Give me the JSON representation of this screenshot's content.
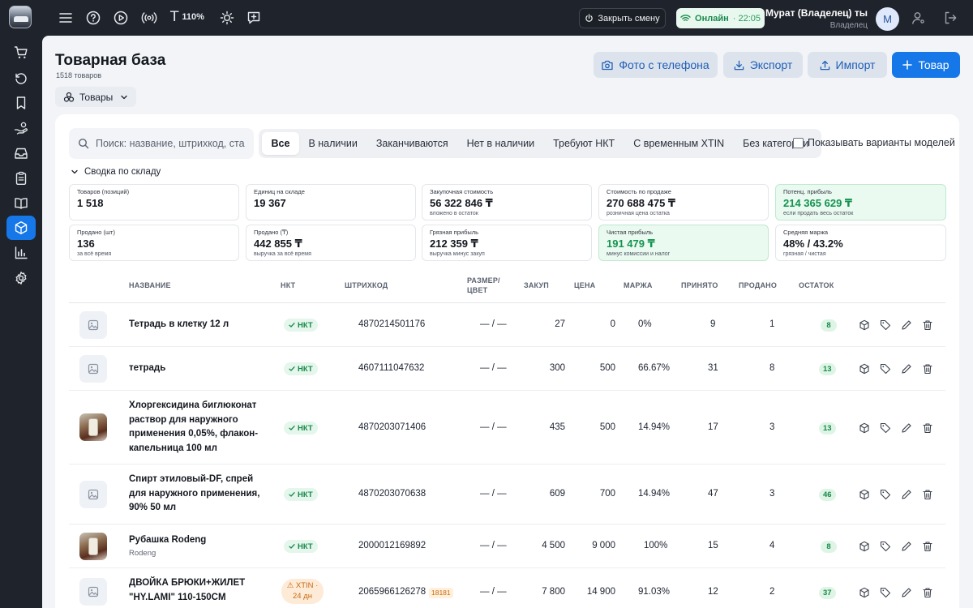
{
  "topbar": {
    "zoom": "110%",
    "close_shift": "Закрыть смену",
    "online_label": "Онлайн",
    "online_time": "· 22:05",
    "user_name": "Мурат (Владелец) ты",
    "user_role": "Владелец",
    "avatar": "M"
  },
  "page": {
    "title": "Товарная база",
    "subtitle": "1518 товаров",
    "category_dropdown": "Товары"
  },
  "header_buttons": {
    "photo": "Фото с телефона",
    "export": "Экспорт",
    "import": "Импорт",
    "add": "Товар"
  },
  "search": {
    "placeholder": "Поиск: название, штрихкод, ста"
  },
  "filters": [
    "Все",
    "В наличии",
    "Заканчиваются",
    "Нет в наличии",
    "Требуют НКТ",
    "С временным XTIN",
    "Без категории"
  ],
  "show_variants": "Показывать варианты моделей",
  "summary": {
    "toggle": "Сводка по складу",
    "stats": [
      {
        "label": "Товаров (позиций)",
        "value": "1 518",
        "sub": ""
      },
      {
        "label": "Единиц на складе",
        "value": "19 367",
        "sub": ""
      },
      {
        "label": "Закупочная стоимость",
        "value": "56 322 846 ₸",
        "sub": "вложено в остаток"
      },
      {
        "label": "Стоимость по продаже",
        "value": "270 688 475 ₸",
        "sub": "розничная цена остатка"
      },
      {
        "label": "Потенц. прибыль",
        "value": "214 365 629 ₸",
        "sub": "если продать весь остаток"
      },
      {
        "label": "Продано (шт)",
        "value": "136",
        "sub": "за всё время"
      },
      {
        "label": "Продано (₸)",
        "value": "442 855 ₸",
        "sub": "выручка за всё время"
      },
      {
        "label": "Грязная прибыль",
        "value": "212 359 ₸",
        "sub": "выручка минус закуп"
      },
      {
        "label": "Чистая прибыль",
        "value": "191 479 ₸",
        "sub": "минус комиссии и налог"
      },
      {
        "label": "Средняя маржа",
        "value": "48% / 43.2%",
        "sub": "грязная / чистая"
      }
    ]
  },
  "table": {
    "headers": {
      "name": "НАЗВАНИЕ",
      "nkt": "НКТ",
      "barcode": "ШТРИХКОД",
      "size_color_1": "РАЗМЕР/",
      "size_color_2": "ЦВЕТ",
      "cost": "ЗАКУП",
      "price": "ЦЕНА",
      "margin": "МАРЖА",
      "received": "ПРИНЯТО",
      "sold": "ПРОДАНО",
      "stock": "ОСТАТОК"
    },
    "rows": [
      {
        "name": "Тетрадь в клетку 12 л",
        "sub": "",
        "badge": "НКТ",
        "barcode": "4870214501176",
        "size": "— / —",
        "cost": "27",
        "price": "0",
        "margin": "0%",
        "received": "9",
        "sold": "1",
        "stock": "8"
      },
      {
        "name": "тетрадь",
        "sub": "",
        "badge": "НКТ",
        "barcode": "4607111047632",
        "size": "— / —",
        "cost": "300",
        "price": "500",
        "margin": "66.67%",
        "received": "31",
        "sold": "8",
        "stock": "13"
      },
      {
        "name": "Хлоргексидина биглюконат раствор для наружного применения 0,05%, флакон-капельница 100 мл",
        "sub": "",
        "badge": "НКТ",
        "barcode": "4870203071406",
        "size": "— / —",
        "cost": "435",
        "price": "500",
        "margin": "14.94%",
        "received": "17",
        "sold": "3",
        "stock": "13"
      },
      {
        "name": "Спирт этиловый-DF, спрей для наружного применения, 90% 50 мл",
        "sub": "",
        "badge": "НКТ",
        "barcode": "4870203070638",
        "size": "— / —",
        "cost": "609",
        "price": "700",
        "margin": "14.94%",
        "received": "47",
        "sold": "3",
        "stock": "46"
      },
      {
        "name": "Рубашка Rodeng",
        "sub": "Rodeng",
        "badge": "НКТ",
        "barcode": "2000012169892",
        "size": "— / —",
        "cost": "4 500",
        "price": "9 000",
        "margin": "100%",
        "received": "15",
        "sold": "4",
        "stock": "8"
      },
      {
        "name": "ДВОЙКА БРЮКИ+ЖИЛЕТ \"HY.LAMI\" 110-150CM",
        "sub": "",
        "badge_xtin_1": "XTIN ·",
        "badge_xtin_2": "24 дн",
        "barcode": "2065966126278",
        "xtin_code": "18181",
        "size": "— / —",
        "cost": "7 800",
        "price": "14 900",
        "margin": "91.03%",
        "received": "12",
        "sold": "2",
        "stock": "37"
      }
    ]
  },
  "colors": {
    "accent": "#1677e8",
    "success": "#17894a",
    "warning": "#c96a12",
    "sidebar": "#1f232b"
  }
}
